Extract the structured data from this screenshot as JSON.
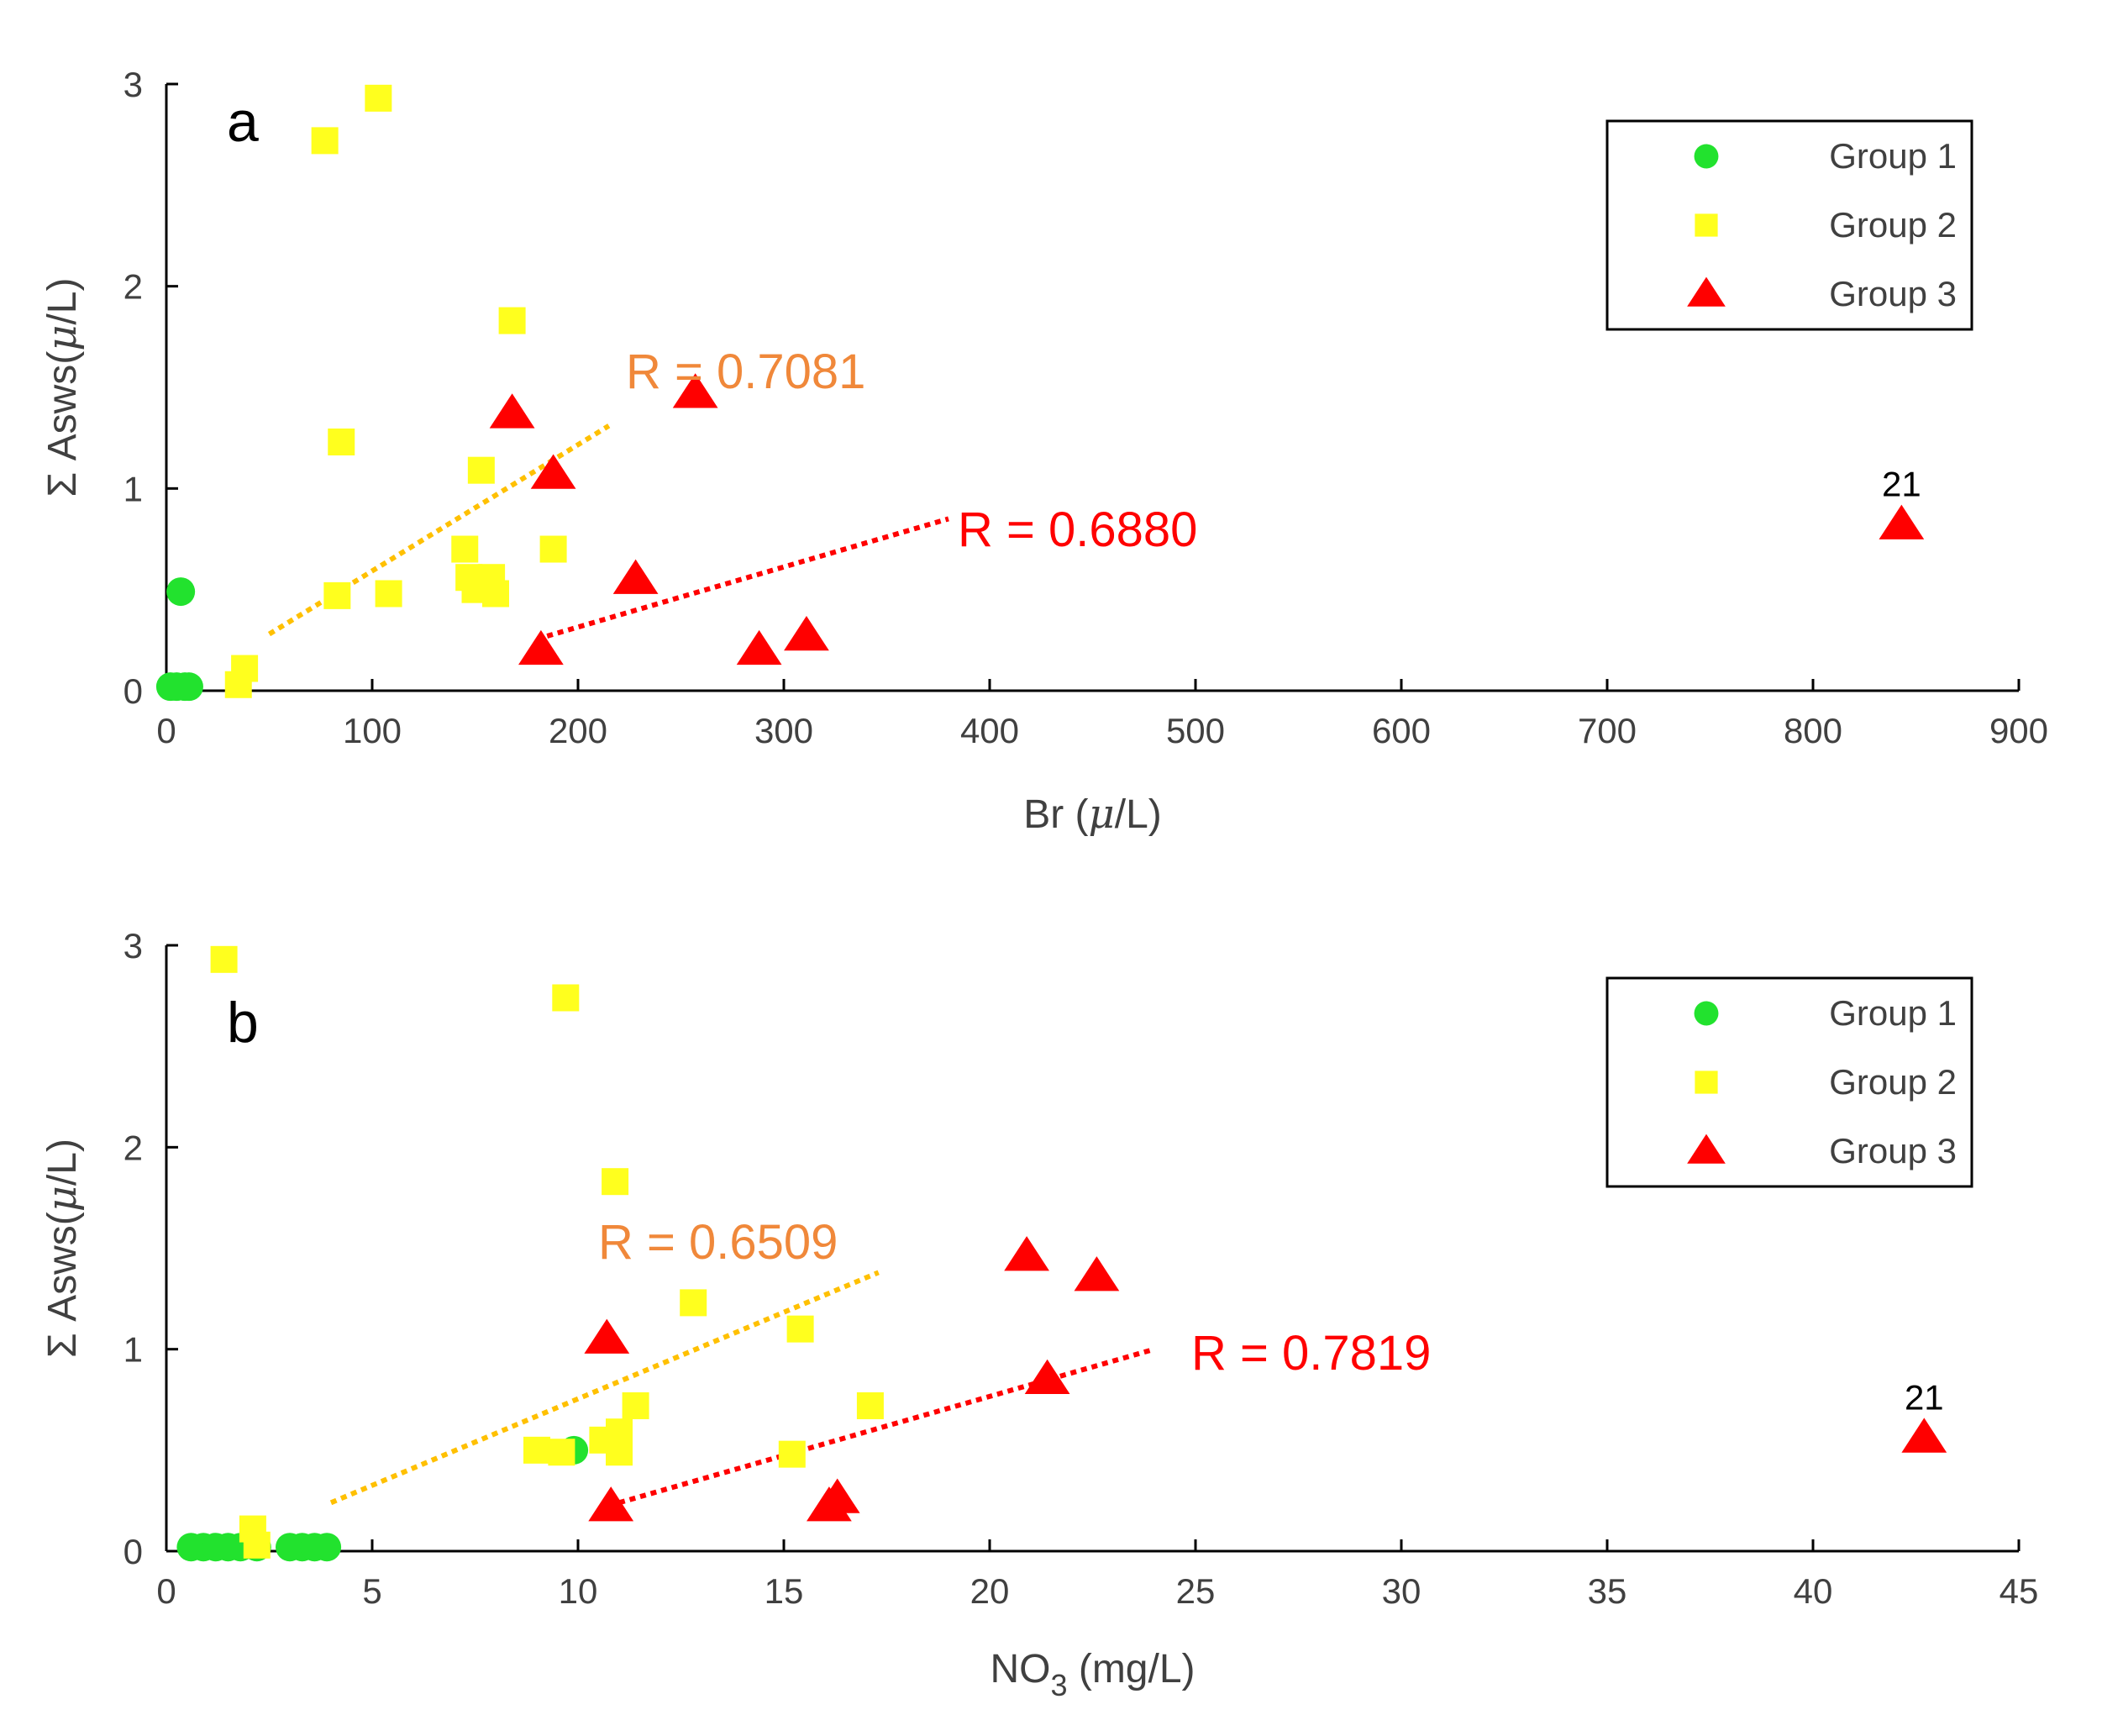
{
  "colors": {
    "group1": "#22e22e",
    "group2": "#ffff1e",
    "group3": "#ff0000",
    "fit_group2": "#ffc000",
    "fit_group3": "#ff0000",
    "r_label_group2": "#f0883a",
    "r_label_group3": "#ff0000",
    "axis": "#000000",
    "text": "#404040"
  },
  "chart_data": [
    {
      "panel": "a",
      "type": "scatter",
      "xlabel_main": "Br (",
      "xlabel_mu": "μ",
      "xlabel_tail": "/L)",
      "ylabel_main": "Σ Asws(",
      "ylabel_mu": "μ",
      "ylabel_tail": "/L)",
      "xlim": [
        0,
        900
      ],
      "ylim": [
        0,
        3
      ],
      "xticks": [
        "0",
        "100",
        "200",
        "300",
        "400",
        "500",
        "600",
        "700",
        "800",
        "900"
      ],
      "yticks": [
        "0",
        "1",
        "2",
        "3"
      ],
      "xtick_values": [
        0,
        100,
        200,
        300,
        400,
        500,
        600,
        700,
        800,
        900
      ],
      "ytick_values": [
        0,
        1,
        2,
        3
      ],
      "legend": {
        "position": "top-right",
        "entries": [
          {
            "series": "Group 1",
            "label": "Group 1",
            "marker": "circle"
          },
          {
            "series": "Group 2",
            "label": "Group 2",
            "marker": "square"
          },
          {
            "series": "Group 3",
            "label": "Group 3",
            "marker": "triangle"
          }
        ]
      },
      "series": [
        {
          "name": "Group 1",
          "marker": "circle",
          "points": [
            [
              7,
              0.49
            ],
            [
              2,
              0.02
            ],
            [
              5,
              0.02
            ],
            [
              9,
              0.02
            ],
            [
              11,
              0.02
            ]
          ]
        },
        {
          "name": "Group 2",
          "marker": "square",
          "points": [
            [
              103,
              2.93
            ],
            [
              77,
              2.72
            ],
            [
              168,
              1.83
            ],
            [
              85,
              1.23
            ],
            [
              153,
              1.09
            ],
            [
              145,
              0.7
            ],
            [
              188,
              0.7
            ],
            [
              147,
              0.56
            ],
            [
              158,
              0.56
            ],
            [
              150,
              0.5
            ],
            [
              160,
              0.48
            ],
            [
              83,
              0.47
            ],
            [
              108,
              0.48
            ],
            [
              38,
              0.11
            ],
            [
              35,
              0.03
            ]
          ]
        },
        {
          "name": "Group 3",
          "marker": "triangle",
          "points": [
            [
              257,
              1.47
            ],
            [
              168,
              1.37
            ],
            [
              188,
              1.07
            ],
            [
              228,
              0.55
            ],
            [
              311,
              0.27
            ],
            [
              288,
              0.2
            ],
            [
              182,
              0.2
            ],
            [
              843,
              0.82
            ]
          ]
        }
      ],
      "fits": [
        {
          "series": "Group 2",
          "label": "R = 0.7081",
          "x": [
            50,
            215
          ],
          "y": [
            0.28,
            1.31
          ]
        },
        {
          "series": "Group 3",
          "label": "R = 0.6880",
          "x": [
            185,
            380
          ],
          "y": [
            0.27,
            0.85
          ]
        }
      ],
      "annotations": [
        {
          "text": "21",
          "x": 843,
          "y": 0.82
        }
      ]
    },
    {
      "panel": "b",
      "type": "scatter",
      "xlabel_main": "NO",
      "xlabel_sub": "3",
      "xlabel_tail": " (mg/L)",
      "ylabel_main": "Σ Asws(",
      "ylabel_mu": "μ",
      "ylabel_tail": "/L)",
      "xlim": [
        0,
        45
      ],
      "ylim": [
        0,
        3
      ],
      "xticks": [
        "0",
        "5",
        "10",
        "15",
        "20",
        "25",
        "30",
        "35",
        "40",
        "45"
      ],
      "yticks": [
        "0",
        "1",
        "2",
        "3"
      ],
      "xtick_values": [
        0,
        5,
        10,
        15,
        20,
        25,
        30,
        35,
        40,
        45
      ],
      "ytick_values": [
        0,
        1,
        2,
        3
      ],
      "legend": {
        "position": "top-right",
        "entries": [
          {
            "series": "Group 1",
            "label": "Group 1",
            "marker": "circle"
          },
          {
            "series": "Group 2",
            "label": "Group 2",
            "marker": "square"
          },
          {
            "series": "Group 3",
            "label": "Group 3",
            "marker": "triangle"
          }
        ]
      },
      "series": [
        {
          "name": "Group 1",
          "marker": "circle",
          "points": [
            [
              9.9,
              0.5
            ],
            [
              0.6,
              0.02
            ],
            [
              0.9,
              0.02
            ],
            [
              1.2,
              0.02
            ],
            [
              1.5,
              0.02
            ],
            [
              1.8,
              0.02
            ],
            [
              2.2,
              0.02
            ],
            [
              3.0,
              0.02
            ],
            [
              3.3,
              0.02
            ],
            [
              3.6,
              0.02
            ],
            [
              3.9,
              0.02
            ]
          ]
        },
        {
          "name": "Group 2",
          "marker": "square",
          "points": [
            [
              1.4,
              2.93
            ],
            [
              9.7,
              2.74
            ],
            [
              10.9,
              1.83
            ],
            [
              12.8,
              1.23
            ],
            [
              15.4,
              1.1
            ],
            [
              11.4,
              0.72
            ],
            [
              17.1,
              0.72
            ],
            [
              10.6,
              0.55
            ],
            [
              11.0,
              0.59
            ],
            [
              9.0,
              0.5
            ],
            [
              9.6,
              0.49
            ],
            [
              11.0,
              0.49
            ],
            [
              15.2,
              0.48
            ],
            [
              2.1,
              0.11
            ],
            [
              2.2,
              0.03
            ]
          ]
        },
        {
          "name": "Group 3",
          "marker": "triangle",
          "points": [
            [
              20.9,
              1.46
            ],
            [
              22.6,
              1.36
            ],
            [
              10.7,
              1.05
            ],
            [
              21.4,
              0.85
            ],
            [
              16.3,
              0.26
            ],
            [
              16.1,
              0.22
            ],
            [
              10.8,
              0.22
            ],
            [
              42.7,
              0.56
            ]
          ]
        }
      ],
      "fits": [
        {
          "series": "Group 2",
          "label": "R = 0.6509",
          "x": [
            4,
            17.3
          ],
          "y": [
            0.24,
            1.38
          ]
        },
        {
          "series": "Group 3",
          "label": "R = 0.7819",
          "x": [
            11,
            24
          ],
          "y": [
            0.24,
            1.0
          ]
        }
      ],
      "annotations": [
        {
          "text": "21",
          "x": 42.7,
          "y": 0.56
        }
      ]
    }
  ]
}
